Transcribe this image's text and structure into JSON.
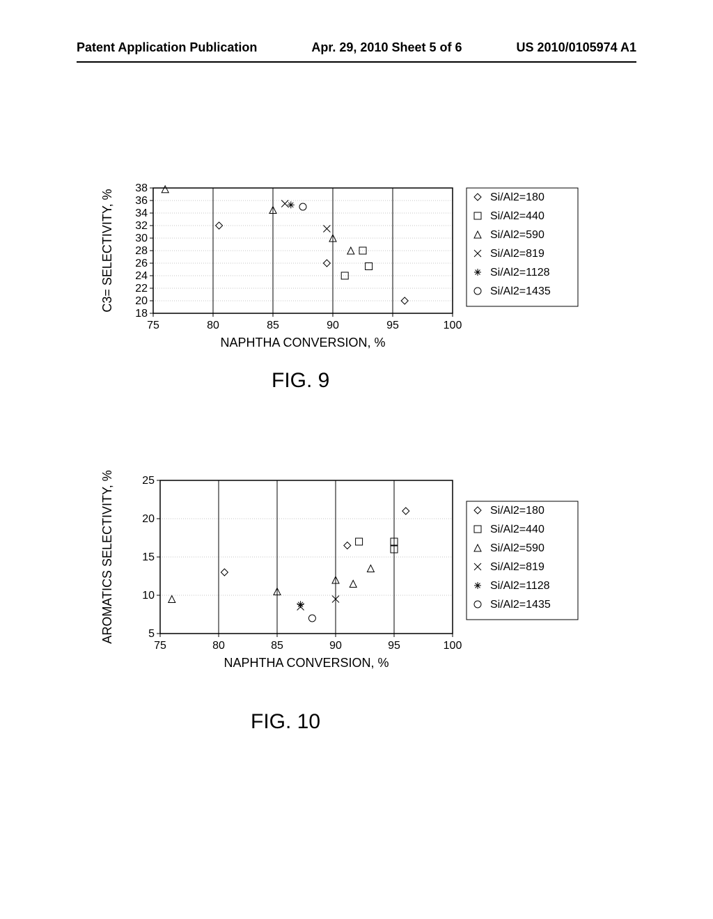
{
  "header": {
    "left": "Patent Application Publication",
    "center": "Apr. 29, 2010  Sheet 5 of 6",
    "right": "US 2010/0105974 A1"
  },
  "fig9": {
    "title": "FIG. 9",
    "type": "scatter",
    "xlabel": "NAPHTHA CONVERSION, %",
    "ylabel": "C3= SELECTIVITY, %",
    "xlim": [
      75,
      100
    ],
    "ylim": [
      18,
      38
    ],
    "xticks": [
      75,
      80,
      85,
      90,
      95,
      100
    ],
    "yticks": [
      18,
      20,
      22,
      24,
      26,
      28,
      30,
      32,
      34,
      36,
      38
    ],
    "grid_color": "#888888",
    "background_color": "#ffffff",
    "series": [
      {
        "name": "Si/Al2=180",
        "marker": "diamond",
        "points": [
          [
            80.5,
            32
          ],
          [
            89.5,
            26
          ],
          [
            96,
            20
          ]
        ]
      },
      {
        "name": "Si/Al2=440",
        "marker": "square",
        "points": [
          [
            91,
            24
          ],
          [
            92.5,
            28
          ],
          [
            93,
            25.5
          ]
        ]
      },
      {
        "name": "Si/Al2=590",
        "marker": "triangle",
        "points": [
          [
            76,
            37.8
          ],
          [
            85,
            34.5
          ],
          [
            90,
            30
          ],
          [
            91.5,
            28
          ]
        ]
      },
      {
        "name": "Si/Al2=819",
        "marker": "x",
        "points": [
          [
            86,
            35.5
          ],
          [
            89.5,
            31.5
          ]
        ]
      },
      {
        "name": "Si/Al2=1128",
        "marker": "asterisk",
        "points": [
          [
            86.5,
            35.3
          ]
        ]
      },
      {
        "name": "Si/Al2=1435",
        "marker": "circle",
        "points": [
          [
            87.5,
            35
          ]
        ]
      }
    ]
  },
  "fig10": {
    "title": "FIG. 10",
    "type": "scatter",
    "xlabel": "NAPHTHA CONVERSION, %",
    "ylabel": "AROMATICS SELECTIVITY, %",
    "xlim": [
      75,
      100
    ],
    "ylim": [
      5,
      25
    ],
    "xticks": [
      75,
      80,
      85,
      90,
      95,
      100
    ],
    "yticks": [
      5,
      10,
      15,
      20,
      25
    ],
    "grid_color": "#888888",
    "background_color": "#ffffff",
    "series": [
      {
        "name": "Si/Al2=180",
        "marker": "diamond",
        "points": [
          [
            80.5,
            13
          ],
          [
            91,
            16.5
          ],
          [
            96,
            21
          ]
        ]
      },
      {
        "name": "Si/Al2=440",
        "marker": "square",
        "points": [
          [
            92,
            17
          ],
          [
            95,
            17
          ],
          [
            95,
            16
          ]
        ]
      },
      {
        "name": "Si/Al2=590",
        "marker": "triangle",
        "points": [
          [
            76,
            9.5
          ],
          [
            85,
            10.5
          ],
          [
            90,
            12
          ],
          [
            91.5,
            11.5
          ],
          [
            93,
            13.5
          ]
        ]
      },
      {
        "name": "Si/Al2=819",
        "marker": "x",
        "points": [
          [
            87,
            8.5
          ],
          [
            90,
            9.5
          ]
        ]
      },
      {
        "name": "Si/Al2=1128",
        "marker": "asterisk",
        "points": [
          [
            87,
            8.8
          ]
        ]
      },
      {
        "name": "Si/Al2=1435",
        "marker": "circle",
        "points": [
          [
            88,
            7
          ]
        ]
      }
    ]
  },
  "legend_labels": [
    "Si/Al2=180",
    "Si/Al2=440",
    "Si/Al2=590",
    "Si/Al2=819",
    "Si/Al2=1128",
    "Si/Al2=1435"
  ],
  "marker_size": 5,
  "stroke_color": "#000000",
  "font_size_tick": 16,
  "font_size_axis_title": 18,
  "font_size_fig_title": 30
}
